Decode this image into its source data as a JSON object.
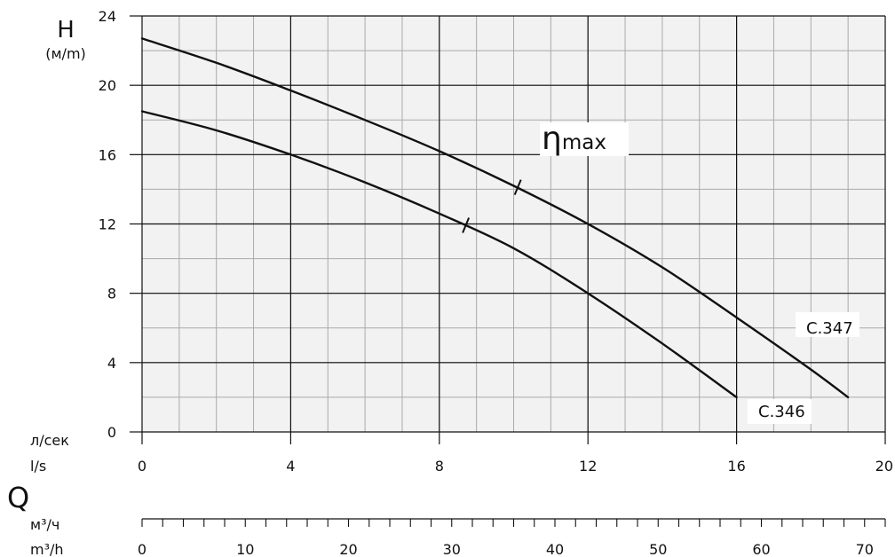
{
  "chart_data": {
    "type": "line",
    "y_axis": {
      "symbol": "H",
      "unit": "(м/m)",
      "ylim": [
        0,
        24
      ],
      "ticks": [
        0,
        4,
        8,
        12,
        16,
        20,
        24
      ],
      "minor_step": 2
    },
    "x_axis": {
      "unit_ru": "л/сек",
      "unit_en": "l/s",
      "xlim": [
        0,
        20
      ],
      "ticks": [
        0,
        4,
        8,
        12,
        16,
        20
      ],
      "minor_step": 1
    },
    "secondary_x_axis": {
      "symbol": "Q",
      "unit_ru": "м³/ч",
      "unit_en": "m³/h",
      "ticks": [
        0,
        10,
        20,
        30,
        40,
        50,
        60,
        70
      ],
      "minor_step": 2,
      "max": 72
    },
    "grid": true,
    "annotation": {
      "main": "η",
      "sub": "max"
    },
    "series": [
      {
        "name": "C.347",
        "points": [
          [
            0,
            22.7
          ],
          [
            2,
            21.3
          ],
          [
            4,
            19.7
          ],
          [
            6,
            18.0
          ],
          [
            8,
            16.2
          ],
          [
            10,
            14.2
          ],
          [
            12,
            12.0
          ],
          [
            14,
            9.5
          ],
          [
            16,
            6.6
          ],
          [
            18,
            3.6
          ],
          [
            19,
            2.0
          ]
        ],
        "eta_max_x": 10.1
      },
      {
        "name": "C.346",
        "points": [
          [
            0,
            18.5
          ],
          [
            2,
            17.4
          ],
          [
            4,
            16.0
          ],
          [
            6,
            14.4
          ],
          [
            8,
            12.6
          ],
          [
            10,
            10.6
          ],
          [
            12,
            8.0
          ],
          [
            14,
            5.1
          ],
          [
            16,
            2.0
          ]
        ],
        "eta_max_x": 8.7
      }
    ]
  }
}
